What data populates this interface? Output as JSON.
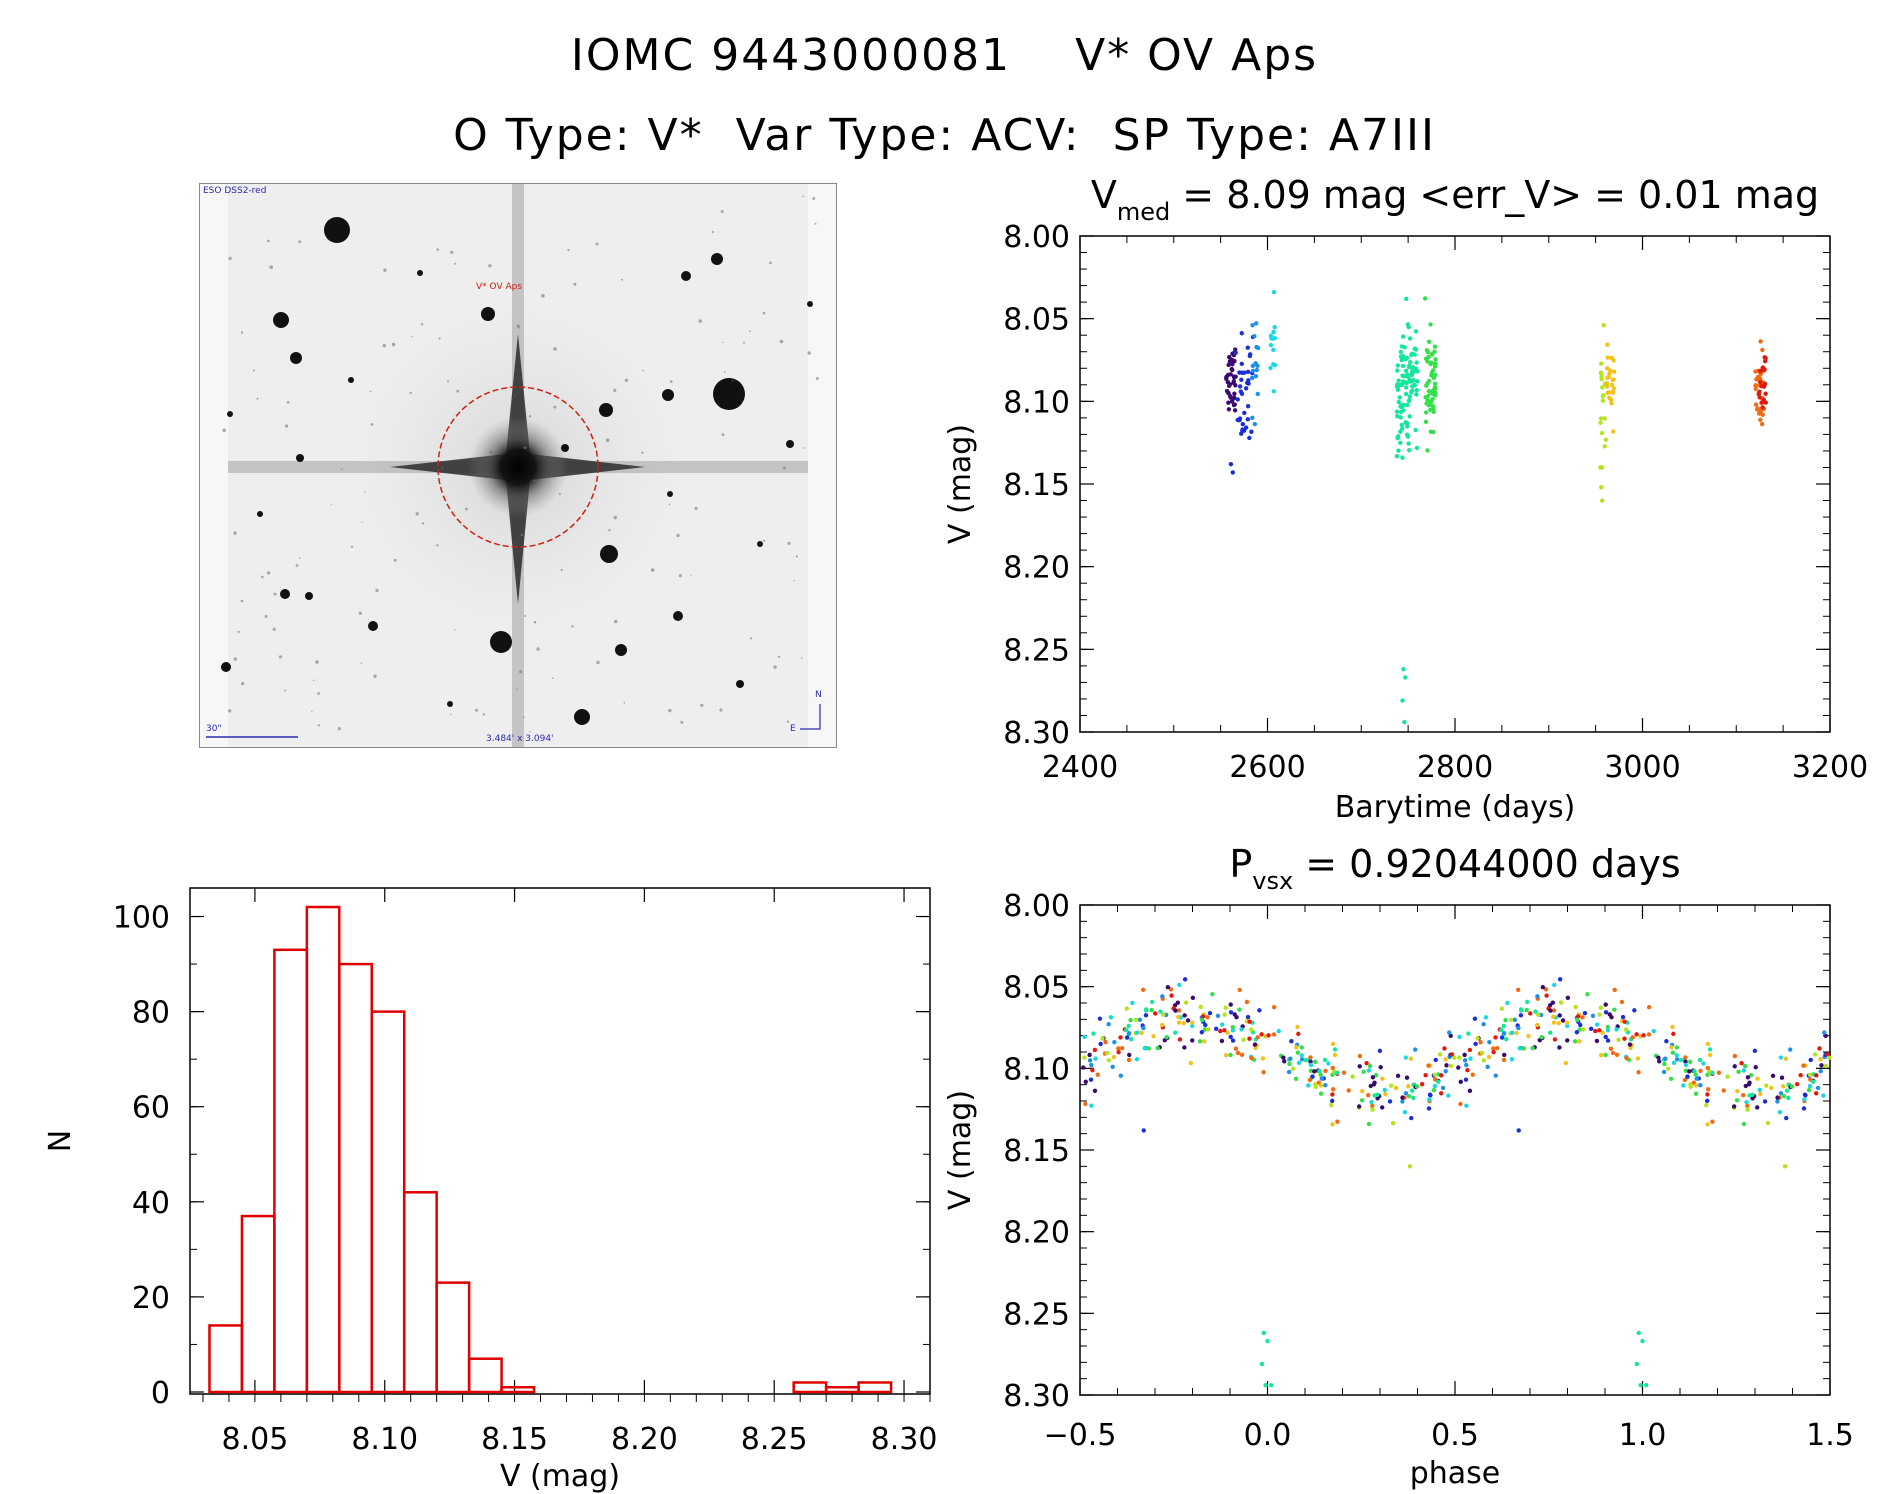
{
  "header": {
    "title_line1": "IOMC 9443000081    V* OV Aps",
    "title_line2": "O Type: V*  Var Type: ACV:  SP Type: A7III"
  },
  "finder": {
    "survey_label": "ESO DSS2-red",
    "target_label": "V* OV Aps",
    "scale_label": "30\"",
    "fov_label": "3.484' x 3.094'",
    "north_label": "N",
    "east_label": "E"
  },
  "colors": {
    "hist": "#e00000",
    "palette": [
      "#3b0a6e",
      "#1b2fd6",
      "#1f8fe8",
      "#18d8e6",
      "#12e89a",
      "#34e04a",
      "#b2e51a",
      "#f2c21a",
      "#f26a12",
      "#e01a0e"
    ]
  },
  "chart_data": [
    {
      "id": "lightcurve",
      "type": "scatter",
      "title_main": "V",
      "title_sub": "med",
      "title_rest": " = 8.09 mag <err_V> = 0.01 mag",
      "xlabel": "Barytime (days)",
      "ylabel": "V (mag)",
      "xlim": [
        2400,
        3200
      ],
      "ylim": [
        8.3,
        8.0
      ],
      "xticks": [
        2400,
        2600,
        2800,
        3000,
        3200
      ],
      "yticks": [
        "8.00",
        "8.05",
        "8.10",
        "8.15",
        "8.20",
        "8.25",
        "8.30"
      ],
      "clusters": [
        {
          "x_min": 2556,
          "x_max": 2566,
          "y_center": 8.09,
          "y_spread": 0.02,
          "n": 40,
          "color_index": 0
        },
        {
          "x_min": 2566,
          "x_max": 2585,
          "y_center": 8.095,
          "y_spread": 0.025,
          "n": 35,
          "color_index": 1
        },
        {
          "x_min": 2582,
          "x_max": 2590,
          "y_center": 8.08,
          "y_spread": 0.03,
          "n": 15,
          "color_index": 2
        },
        {
          "x_min": 2603,
          "x_max": 2608,
          "y_center": 8.075,
          "y_spread": 0.025,
          "n": 12,
          "color_index": 3
        },
        {
          "x_min": 2738,
          "x_max": 2752,
          "y_center": 8.095,
          "y_spread": 0.03,
          "n": 70,
          "color_index": 4
        },
        {
          "x_min": 2752,
          "x_max": 2760,
          "y_center": 8.085,
          "y_spread": 0.025,
          "n": 30,
          "color_index": 4
        },
        {
          "x_min": 2768,
          "x_max": 2780,
          "y_center": 8.09,
          "y_spread": 0.025,
          "n": 55,
          "color_index": 5
        },
        {
          "x_min": 2955,
          "x_max": 2962,
          "y_center": 8.1,
          "y_spread": 0.03,
          "n": 20,
          "color_index": 6
        },
        {
          "x_min": 2962,
          "x_max": 2970,
          "y_center": 8.085,
          "y_spread": 0.02,
          "n": 25,
          "color_index": 7
        },
        {
          "x_min": 3120,
          "x_max": 3130,
          "y_center": 8.095,
          "y_spread": 0.018,
          "n": 30,
          "color_index": 8
        },
        {
          "x_min": 3124,
          "x_max": 3132,
          "y_center": 8.085,
          "y_spread": 0.018,
          "n": 20,
          "color_index": 9
        }
      ],
      "outliers": [
        {
          "x": 2561,
          "y": 8.138,
          "color_index": 1
        },
        {
          "x": 2563,
          "y": 8.143,
          "color_index": 1
        },
        {
          "x": 2745,
          "y": 8.262,
          "color_index": 4
        },
        {
          "x": 2747,
          "y": 8.267,
          "color_index": 4
        },
        {
          "x": 2744,
          "y": 8.281,
          "color_index": 4
        },
        {
          "x": 2746,
          "y": 8.294,
          "color_index": 4
        },
        {
          "x": 2956,
          "y": 8.152,
          "color_index": 6
        },
        {
          "x": 2957,
          "y": 8.16,
          "color_index": 6
        },
        {
          "x": 2607,
          "y": 8.034,
          "color_index": 3
        },
        {
          "x": 2748,
          "y": 8.038,
          "color_index": 4
        }
      ]
    },
    {
      "id": "histogram",
      "type": "bar",
      "xlabel": "V (mag)",
      "ylabel": "N",
      "xlim": [
        8.025,
        8.31
      ],
      "ylim": [
        0,
        106
      ],
      "xticks": [
        "8.05",
        "8.10",
        "8.15",
        "8.20",
        "8.25",
        "8.30"
      ],
      "yticks": [
        "0",
        "20",
        "40",
        "60",
        "80",
        "100"
      ],
      "bin_width": 0.0125,
      "bins": [
        {
          "left": 8.0325,
          "count": 14
        },
        {
          "left": 8.045,
          "count": 37
        },
        {
          "left": 8.0575,
          "count": 93
        },
        {
          "left": 8.07,
          "count": 102
        },
        {
          "left": 8.0825,
          "count": 90
        },
        {
          "left": 8.095,
          "count": 80
        },
        {
          "left": 8.1075,
          "count": 42
        },
        {
          "left": 8.12,
          "count": 23
        },
        {
          "left": 8.1325,
          "count": 7
        },
        {
          "left": 8.145,
          "count": 1
        },
        {
          "left": 8.1575,
          "count": 0
        },
        {
          "left": 8.17,
          "count": 0
        },
        {
          "left": 8.1825,
          "count": 0
        },
        {
          "left": 8.195,
          "count": 0
        },
        {
          "left": 8.2075,
          "count": 0
        },
        {
          "left": 8.22,
          "count": 0
        },
        {
          "left": 8.2325,
          "count": 0
        },
        {
          "left": 8.245,
          "count": 0
        },
        {
          "left": 8.2575,
          "count": 2
        },
        {
          "left": 8.27,
          "count": 1
        },
        {
          "left": 8.2825,
          "count": 2
        }
      ]
    },
    {
      "id": "phased",
      "type": "scatter",
      "title_main": "P",
      "title_sub": "vsx",
      "title_rest": " = 0.92044000 days",
      "xlabel": "phase",
      "ylabel": "V (mag)",
      "xlim": [
        -0.5,
        1.5
      ],
      "ylim": [
        8.3,
        8.0
      ],
      "xticks": [
        "-0.5",
        "0.0",
        "0.5",
        "1.0",
        "1.5"
      ],
      "yticks": [
        "8.00",
        "8.05",
        "8.10",
        "8.15",
        "8.20",
        "8.25",
        "8.30"
      ],
      "curve": {
        "mean": 8.09,
        "amplitude": 0.022,
        "scatter": 0.018,
        "n_per_cycle": 320
      },
      "outliers": [
        {
          "phase": -0.01,
          "y": 8.262,
          "color_index": 4
        },
        {
          "phase": 0.0,
          "y": 8.267,
          "color_index": 4
        },
        {
          "phase": -0.015,
          "y": 8.281,
          "color_index": 4
        },
        {
          "phase": -0.005,
          "y": 8.294,
          "color_index": 4
        },
        {
          "phase": 0.01,
          "y": 8.294,
          "color_index": 4
        },
        {
          "phase": 0.99,
          "y": 8.262,
          "color_index": 4
        },
        {
          "phase": 1.0,
          "y": 8.267,
          "color_index": 4
        },
        {
          "phase": 0.985,
          "y": 8.281,
          "color_index": 4
        },
        {
          "phase": 0.995,
          "y": 8.294,
          "color_index": 4
        },
        {
          "phase": 1.01,
          "y": 8.294,
          "color_index": 4
        },
        {
          "phase": 0.38,
          "y": 8.16,
          "color_index": 6
        },
        {
          "phase": 1.38,
          "y": 8.16,
          "color_index": 6
        },
        {
          "phase": -0.33,
          "y": 8.138,
          "color_index": 1
        },
        {
          "phase": 0.67,
          "y": 8.138,
          "color_index": 1
        }
      ]
    }
  ]
}
